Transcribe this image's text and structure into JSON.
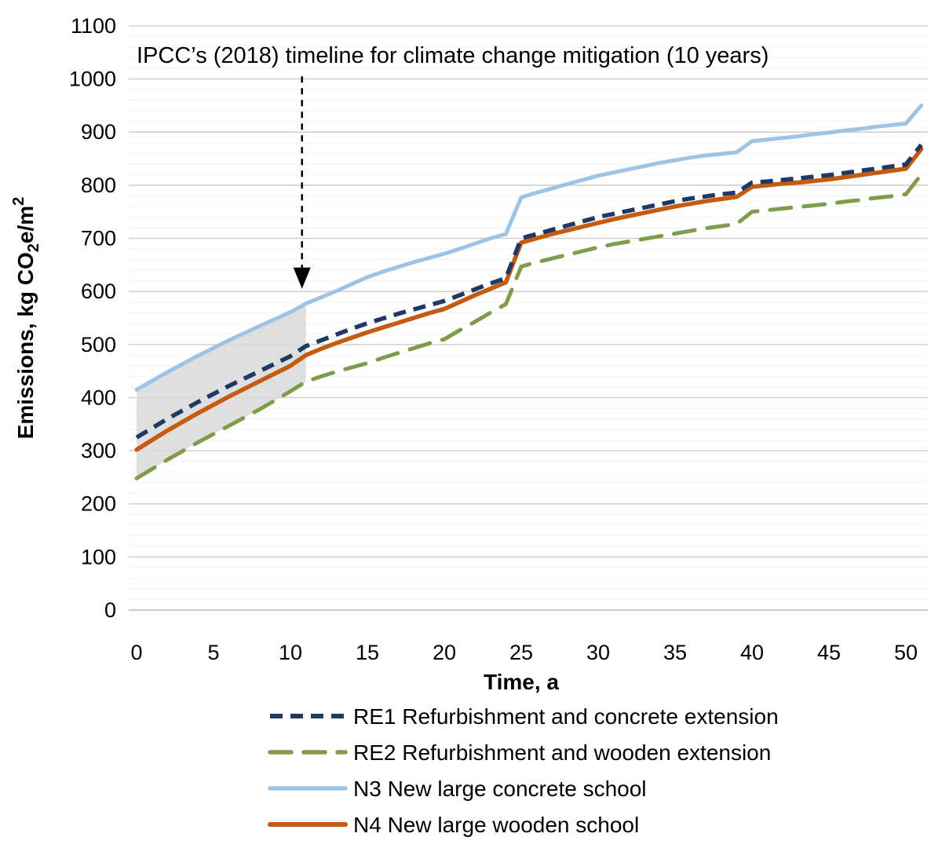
{
  "chart_data": {
    "type": "line",
    "title": "",
    "xlabel": "Time, a",
    "ylabel_parts": [
      {
        "t": "Emissions, kg CO"
      },
      {
        "t": "2",
        "style": "sub"
      },
      {
        "t": "e/m"
      },
      {
        "t": "2",
        "style": "sup"
      }
    ],
    "xlim": [
      0,
      51.5
    ],
    "ylim": [
      0,
      1100
    ],
    "x_ticks": [
      0,
      5,
      10,
      15,
      20,
      25,
      30,
      35,
      40,
      45,
      50
    ],
    "y_ticks": [
      0,
      100,
      200,
      300,
      400,
      500,
      600,
      700,
      800,
      900,
      1000,
      1100
    ],
    "minor_grid_step": 20,
    "grid_major_color": "#CCCCCC",
    "grid_minor_color": "#F2F2F2",
    "grid_zero_color": "#BBBBBB",
    "annotation": {
      "text": "IPCC’s (2018) timeline for climate change mitigation (10 years)",
      "arrow_year": 10.75,
      "arrow_top_value": 1005,
      "arrow_tip_value": 605
    },
    "shaded_region": {
      "x_start": 0,
      "x_end": 11,
      "upper_series": "N3",
      "lower_series": "RE2",
      "color": "#D9D9D9",
      "opacity": 0.85
    },
    "legend_order": [
      "RE1",
      "RE2",
      "N3",
      "N4"
    ],
    "series": [
      {
        "id": "RE1",
        "label": "RE1  Refurbishment and concrete extension",
        "color": "#1F3864",
        "dash": "16 10",
        "width": 5.5,
        "linecap": "butt",
        "points": [
          [
            0,
            325
          ],
          [
            2,
            360
          ],
          [
            4,
            392
          ],
          [
            6,
            422
          ],
          [
            8,
            450
          ],
          [
            10,
            478
          ],
          [
            11,
            497
          ],
          [
            12,
            508
          ],
          [
            13,
            519
          ],
          [
            14,
            530
          ],
          [
            15,
            540
          ],
          [
            16,
            549
          ],
          [
            17,
            558
          ],
          [
            18,
            566
          ],
          [
            19,
            574
          ],
          [
            20,
            582
          ],
          [
            21,
            593
          ],
          [
            22,
            604
          ],
          [
            23,
            615
          ],
          [
            24,
            625
          ],
          [
            25,
            700
          ],
          [
            26,
            708
          ],
          [
            27,
            716
          ],
          [
            28,
            724
          ],
          [
            29,
            732
          ],
          [
            30,
            740
          ],
          [
            31,
            746
          ],
          [
            32,
            752
          ],
          [
            33,
            758
          ],
          [
            34,
            764
          ],
          [
            35,
            770
          ],
          [
            36,
            775
          ],
          [
            37,
            779
          ],
          [
            38,
            783
          ],
          [
            39,
            786
          ],
          [
            40,
            805
          ],
          [
            41,
            807
          ],
          [
            42,
            810
          ],
          [
            43,
            813
          ],
          [
            44,
            816
          ],
          [
            45,
            819
          ],
          [
            46,
            823
          ],
          [
            47,
            827
          ],
          [
            48,
            831
          ],
          [
            49,
            835
          ],
          [
            50,
            839
          ],
          [
            51,
            876
          ]
        ]
      },
      {
        "id": "RE2",
        "label": "RE2 Refurbishment and wooden extension",
        "color": "#7E9C49",
        "dash": "27 16",
        "width": 5,
        "linecap": "round",
        "points": [
          [
            0,
            248
          ],
          [
            2,
            283
          ],
          [
            4,
            316
          ],
          [
            6,
            347
          ],
          [
            8,
            378
          ],
          [
            10,
            412
          ],
          [
            11,
            430
          ],
          [
            12,
            440
          ],
          [
            13,
            449
          ],
          [
            14,
            457
          ],
          [
            15,
            465
          ],
          [
            16,
            475
          ],
          [
            17,
            484
          ],
          [
            18,
            493
          ],
          [
            19,
            502
          ],
          [
            20,
            510
          ],
          [
            21,
            527
          ],
          [
            22,
            543
          ],
          [
            23,
            560
          ],
          [
            24,
            576
          ],
          [
            25,
            647
          ],
          [
            26,
            655
          ],
          [
            27,
            662
          ],
          [
            28,
            669
          ],
          [
            29,
            676
          ],
          [
            30,
            683
          ],
          [
            31,
            689
          ],
          [
            32,
            694
          ],
          [
            33,
            699
          ],
          [
            34,
            704
          ],
          [
            35,
            709
          ],
          [
            36,
            714
          ],
          [
            37,
            719
          ],
          [
            38,
            723
          ],
          [
            39,
            727
          ],
          [
            40,
            750
          ],
          [
            41,
            753
          ],
          [
            42,
            756
          ],
          [
            43,
            759
          ],
          [
            44,
            762
          ],
          [
            45,
            765
          ],
          [
            46,
            769
          ],
          [
            47,
            772
          ],
          [
            48,
            776
          ],
          [
            49,
            779
          ],
          [
            50,
            783
          ],
          [
            51,
            820
          ]
        ]
      },
      {
        "id": "N3",
        "label": "N3  New large concrete school",
        "color": "#9DC3E6",
        "dash": null,
        "width": 5,
        "linecap": "round",
        "points": [
          [
            0,
            415
          ],
          [
            2,
            448
          ],
          [
            4,
            479
          ],
          [
            6,
            508
          ],
          [
            8,
            535
          ],
          [
            10,
            561
          ],
          [
            11,
            577
          ],
          [
            12,
            589
          ],
          [
            13,
            601
          ],
          [
            14,
            614
          ],
          [
            15,
            627
          ],
          [
            16,
            637
          ],
          [
            17,
            646
          ],
          [
            18,
            655
          ],
          [
            19,
            663
          ],
          [
            20,
            671
          ],
          [
            21,
            680
          ],
          [
            22,
            690
          ],
          [
            23,
            700
          ],
          [
            24,
            708
          ],
          [
            25,
            777
          ],
          [
            26,
            786
          ],
          [
            27,
            794
          ],
          [
            28,
            802
          ],
          [
            29,
            810
          ],
          [
            30,
            818
          ],
          [
            31,
            824
          ],
          [
            32,
            830
          ],
          [
            33,
            836
          ],
          [
            34,
            842
          ],
          [
            35,
            847
          ],
          [
            36,
            852
          ],
          [
            37,
            856
          ],
          [
            38,
            859
          ],
          [
            39,
            862
          ],
          [
            40,
            883
          ],
          [
            41,
            886
          ],
          [
            42,
            889
          ],
          [
            43,
            892
          ],
          [
            44,
            896
          ],
          [
            45,
            899
          ],
          [
            46,
            903
          ],
          [
            47,
            906
          ],
          [
            48,
            910
          ],
          [
            49,
            913
          ],
          [
            50,
            916
          ],
          [
            51,
            950
          ]
        ]
      },
      {
        "id": "N4",
        "label": "N4  New large wooden school",
        "color": "#C55A11",
        "dash": null,
        "width": 5.5,
        "linecap": "round",
        "points": [
          [
            0,
            302
          ],
          [
            2,
            338
          ],
          [
            4,
            371
          ],
          [
            6,
            402
          ],
          [
            8,
            431
          ],
          [
            10,
            460
          ],
          [
            11,
            480
          ],
          [
            12,
            492
          ],
          [
            13,
            503
          ],
          [
            14,
            513
          ],
          [
            15,
            523
          ],
          [
            16,
            532
          ],
          [
            17,
            541
          ],
          [
            18,
            550
          ],
          [
            19,
            559
          ],
          [
            20,
            567
          ],
          [
            21,
            580
          ],
          [
            22,
            593
          ],
          [
            23,
            605
          ],
          [
            24,
            617
          ],
          [
            25,
            692
          ],
          [
            26,
            700
          ],
          [
            27,
            708
          ],
          [
            28,
            715
          ],
          [
            29,
            722
          ],
          [
            30,
            729
          ],
          [
            31,
            736
          ],
          [
            32,
            742
          ],
          [
            33,
            748
          ],
          [
            34,
            754
          ],
          [
            35,
            760
          ],
          [
            36,
            765
          ],
          [
            37,
            770
          ],
          [
            38,
            774
          ],
          [
            39,
            778
          ],
          [
            40,
            797
          ],
          [
            41,
            800
          ],
          [
            42,
            803
          ],
          [
            43,
            805
          ],
          [
            44,
            808
          ],
          [
            45,
            811
          ],
          [
            46,
            815
          ],
          [
            47,
            819
          ],
          [
            48,
            823
          ],
          [
            49,
            827
          ],
          [
            50,
            831
          ],
          [
            51,
            868
          ]
        ]
      }
    ],
    "draw_order": [
      "N3",
      "RE2",
      "N4",
      "RE1"
    ]
  }
}
